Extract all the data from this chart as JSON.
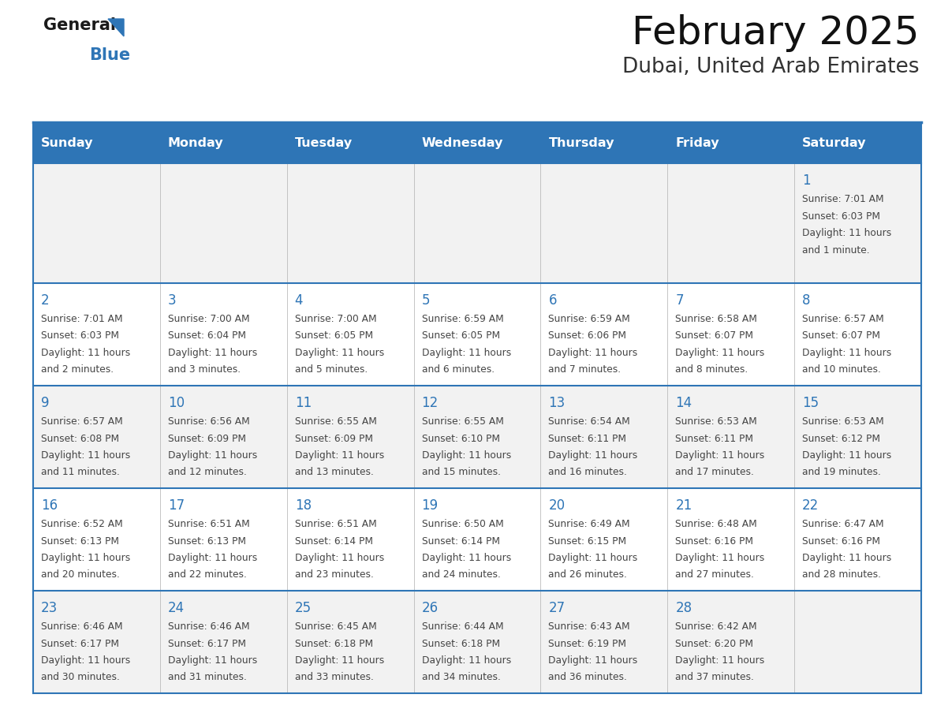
{
  "title": "February 2025",
  "subtitle": "Dubai, United Arab Emirates",
  "header_bg": "#2E75B6",
  "header_text_color": "#FFFFFF",
  "day_names": [
    "Sunday",
    "Monday",
    "Tuesday",
    "Wednesday",
    "Thursday",
    "Friday",
    "Saturday"
  ],
  "cell_bg_row0": "#F2F2F2",
  "cell_bg_row1": "#FFFFFF",
  "cell_bg_row2": "#F2F2F2",
  "cell_bg_row3": "#FFFFFF",
  "cell_bg_row4": "#F2F2F2",
  "separator_color": "#2E75B6",
  "day_num_color": "#2E75B6",
  "text_color": "#444444",
  "calendar_data": [
    [
      null,
      null,
      null,
      null,
      null,
      null,
      {
        "day": "1",
        "sunrise": "7:01 AM",
        "sunset": "6:03 PM",
        "daylight": "11 hours",
        "daylight2": "and 1 minute."
      }
    ],
    [
      {
        "day": "2",
        "sunrise": "7:01 AM",
        "sunset": "6:03 PM",
        "daylight": "11 hours",
        "daylight2": "and 2 minutes."
      },
      {
        "day": "3",
        "sunrise": "7:00 AM",
        "sunset": "6:04 PM",
        "daylight": "11 hours",
        "daylight2": "and 3 minutes."
      },
      {
        "day": "4",
        "sunrise": "7:00 AM",
        "sunset": "6:05 PM",
        "daylight": "11 hours",
        "daylight2": "and 5 minutes."
      },
      {
        "day": "5",
        "sunrise": "6:59 AM",
        "sunset": "6:05 PM",
        "daylight": "11 hours",
        "daylight2": "and 6 minutes."
      },
      {
        "day": "6",
        "sunrise": "6:59 AM",
        "sunset": "6:06 PM",
        "daylight": "11 hours",
        "daylight2": "and 7 minutes."
      },
      {
        "day": "7",
        "sunrise": "6:58 AM",
        "sunset": "6:07 PM",
        "daylight": "11 hours",
        "daylight2": "and 8 minutes."
      },
      {
        "day": "8",
        "sunrise": "6:57 AM",
        "sunset": "6:07 PM",
        "daylight": "11 hours",
        "daylight2": "and 10 minutes."
      }
    ],
    [
      {
        "day": "9",
        "sunrise": "6:57 AM",
        "sunset": "6:08 PM",
        "daylight": "11 hours",
        "daylight2": "and 11 minutes."
      },
      {
        "day": "10",
        "sunrise": "6:56 AM",
        "sunset": "6:09 PM",
        "daylight": "11 hours",
        "daylight2": "and 12 minutes."
      },
      {
        "day": "11",
        "sunrise": "6:55 AM",
        "sunset": "6:09 PM",
        "daylight": "11 hours",
        "daylight2": "and 13 minutes."
      },
      {
        "day": "12",
        "sunrise": "6:55 AM",
        "sunset": "6:10 PM",
        "daylight": "11 hours",
        "daylight2": "and 15 minutes."
      },
      {
        "day": "13",
        "sunrise": "6:54 AM",
        "sunset": "6:11 PM",
        "daylight": "11 hours",
        "daylight2": "and 16 minutes."
      },
      {
        "day": "14",
        "sunrise": "6:53 AM",
        "sunset": "6:11 PM",
        "daylight": "11 hours",
        "daylight2": "and 17 minutes."
      },
      {
        "day": "15",
        "sunrise": "6:53 AM",
        "sunset": "6:12 PM",
        "daylight": "11 hours",
        "daylight2": "and 19 minutes."
      }
    ],
    [
      {
        "day": "16",
        "sunrise": "6:52 AM",
        "sunset": "6:13 PM",
        "daylight": "11 hours",
        "daylight2": "and 20 minutes."
      },
      {
        "day": "17",
        "sunrise": "6:51 AM",
        "sunset": "6:13 PM",
        "daylight": "11 hours",
        "daylight2": "and 22 minutes."
      },
      {
        "day": "18",
        "sunrise": "6:51 AM",
        "sunset": "6:14 PM",
        "daylight": "11 hours",
        "daylight2": "and 23 minutes."
      },
      {
        "day": "19",
        "sunrise": "6:50 AM",
        "sunset": "6:14 PM",
        "daylight": "11 hours",
        "daylight2": "and 24 minutes."
      },
      {
        "day": "20",
        "sunrise": "6:49 AM",
        "sunset": "6:15 PM",
        "daylight": "11 hours",
        "daylight2": "and 26 minutes."
      },
      {
        "day": "21",
        "sunrise": "6:48 AM",
        "sunset": "6:16 PM",
        "daylight": "11 hours",
        "daylight2": "and 27 minutes."
      },
      {
        "day": "22",
        "sunrise": "6:47 AM",
        "sunset": "6:16 PM",
        "daylight": "11 hours",
        "daylight2": "and 28 minutes."
      }
    ],
    [
      {
        "day": "23",
        "sunrise": "6:46 AM",
        "sunset": "6:17 PM",
        "daylight": "11 hours",
        "daylight2": "and 30 minutes."
      },
      {
        "day": "24",
        "sunrise": "6:46 AM",
        "sunset": "6:17 PM",
        "daylight": "11 hours",
        "daylight2": "and 31 minutes."
      },
      {
        "day": "25",
        "sunrise": "6:45 AM",
        "sunset": "6:18 PM",
        "daylight": "11 hours",
        "daylight2": "and 33 minutes."
      },
      {
        "day": "26",
        "sunrise": "6:44 AM",
        "sunset": "6:18 PM",
        "daylight": "11 hours",
        "daylight2": "and 34 minutes."
      },
      {
        "day": "27",
        "sunrise": "6:43 AM",
        "sunset": "6:19 PM",
        "daylight": "11 hours",
        "daylight2": "and 36 minutes."
      },
      {
        "day": "28",
        "sunrise": "6:42 AM",
        "sunset": "6:20 PM",
        "daylight": "11 hours",
        "daylight2": "and 37 minutes."
      },
      null
    ]
  ]
}
